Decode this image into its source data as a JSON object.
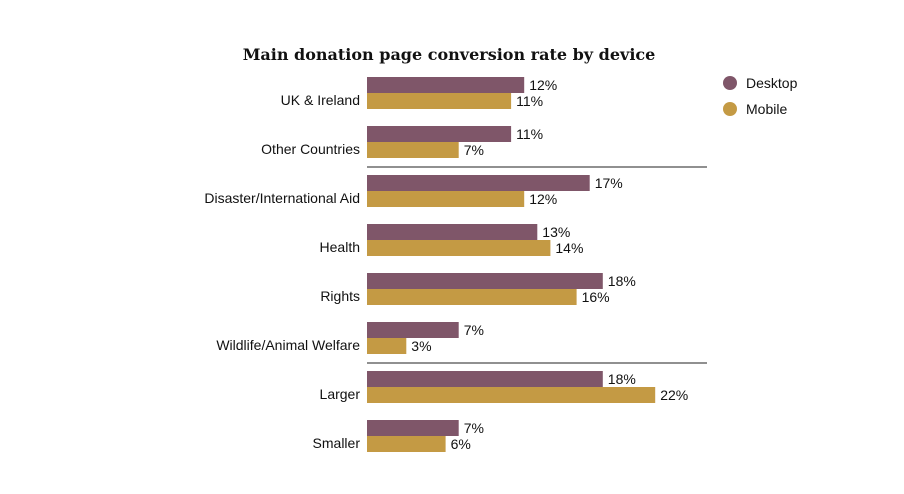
{
  "chart_data": {
    "type": "bar",
    "orientation": "horizontal",
    "title": "Main donation page conversion rate by device",
    "categories": [
      "UK & Ireland",
      "Other Countries",
      "Disaster/International Aid",
      "Health",
      "Rights",
      "Wildlife/Animal Welfare",
      "Larger",
      "Smaller"
    ],
    "series": [
      {
        "name": "Desktop",
        "color": "#7f5669",
        "values": [
          12,
          11,
          17,
          13,
          18,
          7,
          18,
          7
        ],
        "labels": [
          "12%",
          "11%",
          "17%",
          "13%",
          "18%",
          "7%",
          "18%",
          "7%"
        ]
      },
      {
        "name": "Mobile",
        "color": "#c49a44",
        "values": [
          11,
          7,
          12,
          14,
          16,
          3,
          22,
          6
        ],
        "labels": [
          "11%",
          "7%",
          "12%",
          "14%",
          "16%",
          "3%",
          "22%",
          "6%"
        ]
      }
    ],
    "group_separators_after": [
      1,
      5
    ],
    "xlim": [
      0,
      25
    ],
    "xlabel": "",
    "ylabel": "",
    "legend_position": "top-right",
    "grid": false
  }
}
